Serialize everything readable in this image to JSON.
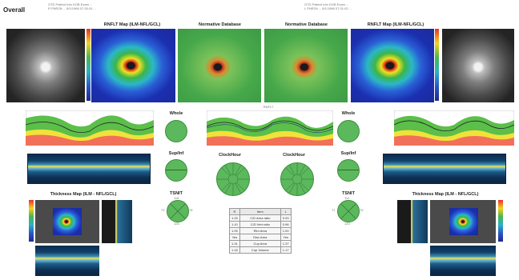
{
  "header": {
    "title": "Overall",
    "left_meta": [
      "OTD    Patient Info  DOB  Exam ...",
      "R  PNR2N  ...  8/1/1966  07:30:24  ..."
    ],
    "right_meta": [
      "OTD    Patient Info  DOB  Exam ...",
      "L  PNR2N  ...  8/1/1966  07:31:02  ..."
    ]
  },
  "maps": {
    "rnfl_left": "RNFLT Map (ILM-NFL/GCL)",
    "normative_left": "Normative Database",
    "normative_right": "Normative Database",
    "rnfl_right": "RNFLT Map (ILM-NFL/GCL)"
  },
  "sectors": {
    "whole_left": "Whole",
    "whole_right": "Whole",
    "supinf_left": "Sup/Inf",
    "supinf_right": "Sup/Inf",
    "tsnit_left": "TSNIT",
    "tsnit_right": "TSNIT",
    "clock_left": "ClockHour",
    "clock_right": "ClockHour",
    "tsnit_left_vals": {
      "t": "73",
      "s": "118",
      "n": "78",
      "i": "126"
    },
    "tsnit_right_vals": {
      "t": "71",
      "s": "112",
      "n": "76",
      "i": "120"
    }
  },
  "thickness": {
    "left": "Thickness Map (ILM - NFL/GCL)",
    "right": "Thickness Map (ILM - NFL/GCL)"
  },
  "center_label": "RNFLT",
  "table": {
    "rows": [
      [
        "R",
        "Item",
        "L"
      ],
      [
        "1.03",
        "C/D Area ratio",
        "0.93"
      ],
      [
        "1.10",
        "C/D Vert ratio",
        "0.96"
      ],
      [
        "1.09",
        "Rim Area",
        "1.00"
      ],
      [
        "Yes",
        "Disc Area",
        "Yes"
      ],
      [
        "1.31",
        "Cup Area",
        "1.37"
      ],
      [
        "1.18",
        "Cup Volume",
        "1.17"
      ]
    ]
  },
  "colors": {
    "green_band": "#5bbf4a",
    "yellow_band": "#f1e23a",
    "red_band": "#f2705a",
    "sector_green": "#5cb85c"
  }
}
